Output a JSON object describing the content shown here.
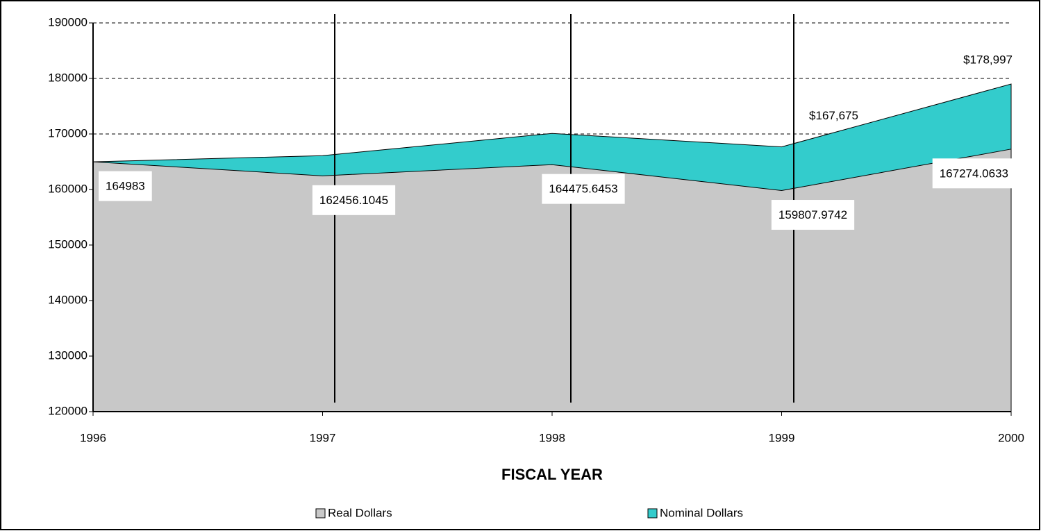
{
  "chart_data": {
    "type": "area",
    "x_label": "FISCAL YEAR",
    "categories": [
      "1996",
      "1997",
      "1998",
      "1999",
      "2000"
    ],
    "series": [
      {
        "name": "Real Dollars",
        "color": "#c8c8c8",
        "values": [
          164983,
          162456.1045,
          164475.6453,
          159807.9742,
          167274.0633
        ]
      },
      {
        "name": "Nominal Dollars",
        "color": "#33cccc",
        "values": [
          164983,
          166100,
          170100,
          167675,
          178997
        ],
        "value_labels": [
          null,
          null,
          null,
          "$167,675",
          "$178,997"
        ]
      }
    ],
    "ylim": [
      120000,
      190000
    ],
    "yticks": [
      120000,
      130000,
      140000,
      150000,
      160000,
      170000,
      180000,
      190000
    ],
    "grid": true
  }
}
